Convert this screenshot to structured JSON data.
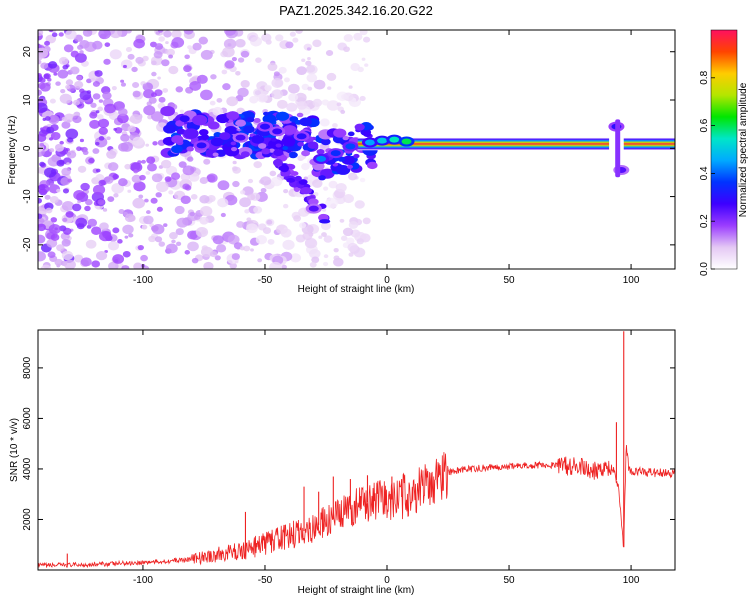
{
  "title": "PAZ1.2025.342.16.20.G22",
  "chart_data": [
    {
      "type": "heatmap",
      "title": "PAZ1.2025.342.16.20.G22",
      "xlabel": "Height of straight line (km)",
      "ylabel": "Frequency (Hz)",
      "xlim": [
        -143,
        118
      ],
      "ylim": [
        -25,
        24.5
      ],
      "xticks": [
        "-100",
        "-50",
        "0",
        "50",
        "100"
      ],
      "yticks": [
        "20",
        "10",
        "0",
        "-10",
        "-20"
      ],
      "grid": false,
      "colorbar": {
        "label": "Normalized spectral amplitude",
        "range": [
          0,
          1
        ],
        "ticks": [
          "0.0",
          "0.2",
          "0.4",
          "0.6",
          "0.8"
        ],
        "colors": [
          "#ffffff",
          "#e4c8f4",
          "#9b3dff",
          "#3d00ff",
          "#0033ff",
          "#00aaff",
          "#00e6c8",
          "#00e600",
          "#b4e600",
          "#ffcc00",
          "#ff4400",
          "#ff1060"
        ]
      },
      "tone": {
        "x_start_km": -12,
        "x_end_km": 118,
        "center_hz": 0.9,
        "gap_km": [
          91,
          97
        ]
      },
      "features": [
        {
          "x_km": -27,
          "y_hz": -2.2,
          "amp": 0.42
        },
        {
          "x_km": -21,
          "y_hz": -1.0,
          "amp": 0.35
        },
        {
          "x_km": -15,
          "y_hz": 0.4,
          "amp": 0.38
        },
        {
          "x_km": -7,
          "y_hz": 1.2,
          "amp": 0.45
        },
        {
          "x_km": -2,
          "y_hz": 1.6,
          "amp": 0.5
        },
        {
          "x_km": 3,
          "y_hz": 1.8,
          "amp": 0.55
        },
        {
          "x_km": 8,
          "y_hz": 1.4,
          "amp": 0.6
        },
        {
          "x_km": -50,
          "y_hz": 4.5,
          "amp": 0.3
        },
        {
          "x_km": -45,
          "y_hz": 3.5,
          "amp": 0.28
        },
        {
          "x_km": -60,
          "y_hz": 2.2,
          "amp": 0.26
        },
        {
          "x_km": -76,
          "y_hz": 0.6,
          "amp": 0.3
        },
        {
          "x_km": -35,
          "y_hz": 2.5,
          "amp": 0.3
        },
        {
          "x_km": -30,
          "y_hz": -12.5,
          "amp": 0.25
        },
        {
          "x_km": 94,
          "y_hz": 4.5,
          "amp": 0.3
        },
        {
          "x_km": 96,
          "y_hz": -4.5,
          "amp": 0.25
        }
      ]
    },
    {
      "type": "line",
      "xlabel": "Height of straight line (km)",
      "ylabel": "SNR (10 * v/v)",
      "xlim": [
        -143,
        118
      ],
      "ylim": [
        0,
        9500
      ],
      "xticks": [
        "-100",
        "-50",
        "0",
        "50",
        "100"
      ],
      "yticks": [
        "2000",
        "4000",
        "6000",
        "8000"
      ],
      "grid": false,
      "series": [
        {
          "name": "SNR",
          "color": "#ee2222",
          "x": [
            -143,
            -130,
            -120,
            -110,
            -100,
            -90,
            -80,
            -75,
            -70,
            -60,
            -55,
            -50,
            -45,
            -40,
            -35,
            -30,
            -25,
            -20,
            -15,
            -10,
            -5,
            0,
            5,
            10,
            15,
            20,
            25,
            30,
            40,
            50,
            60,
            70,
            80,
            85,
            90,
            93,
            95,
            96,
            97,
            98,
            99,
            100,
            105,
            110,
            118
          ],
          "values": [
            180,
            200,
            220,
            260,
            300,
            350,
            430,
            500,
            600,
            750,
            900,
            1050,
            1200,
            1350,
            1500,
            1700,
            1900,
            2100,
            2400,
            2650,
            2700,
            2750,
            2850,
            3050,
            3250,
            3600,
            3850,
            3950,
            4050,
            4100,
            4150,
            4150,
            4050,
            3950,
            4100,
            3900,
            3200,
            1900,
            900,
            5000,
            4100,
            3850,
            3900,
            3850,
            3850
          ]
        }
      ],
      "spikes": [
        {
          "x": -131,
          "value": 650
        },
        {
          "x": -58,
          "value": 2300
        },
        {
          "x": -34,
          "value": 3300
        },
        {
          "x": -28,
          "value": 3100
        },
        {
          "x": -22,
          "value": 3700
        },
        {
          "x": -15,
          "value": 3600
        },
        {
          "x": -8,
          "value": 3750
        },
        {
          "x": 2,
          "value": 3700
        },
        {
          "x": 6,
          "value": 3600
        },
        {
          "x": 94,
          "value": 5850
        },
        {
          "x": 97,
          "value": 9450
        }
      ]
    }
  ]
}
